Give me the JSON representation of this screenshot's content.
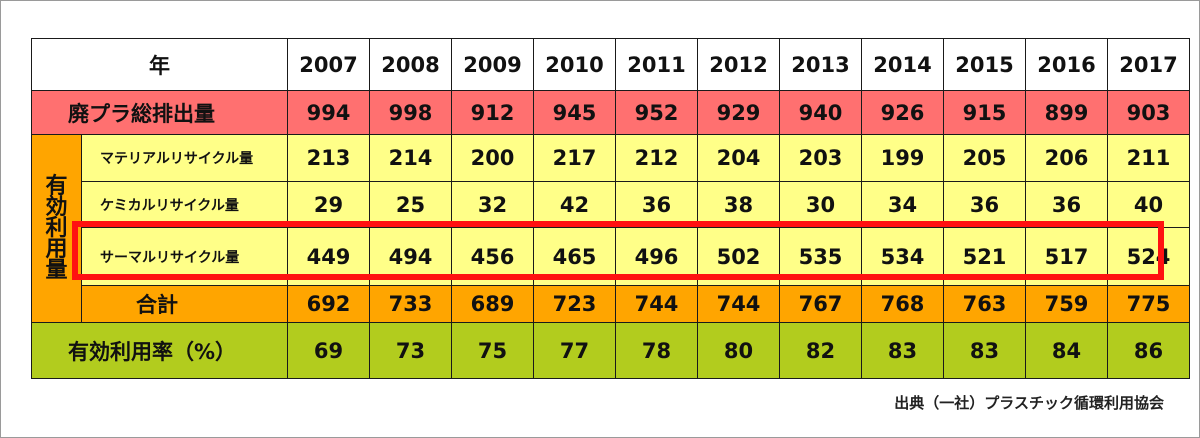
{
  "table": {
    "year_label": "年",
    "years": [
      "2007",
      "2008",
      "2009",
      "2010",
      "2011",
      "2012",
      "2013",
      "2014",
      "2015",
      "2016",
      "2017"
    ],
    "total_label": "廃プラ総排出量",
    "total_values": [
      "994",
      "998",
      "912",
      "945",
      "952",
      "929",
      "940",
      "926",
      "915",
      "899",
      "903"
    ],
    "side_label_chars": [
      "有",
      "効",
      "利",
      "用",
      "量"
    ],
    "material_label": "マテリアルリサイクル量",
    "material_values": [
      "213",
      "214",
      "200",
      "217",
      "212",
      "204",
      "203",
      "199",
      "205",
      "206",
      "211"
    ],
    "chemical_label": "ケミカルリサイクル量",
    "chemical_values": [
      "29",
      "25",
      "32",
      "42",
      "36",
      "38",
      "30",
      "34",
      "36",
      "36",
      "40"
    ],
    "thermal_label": "サーマルリサイクル量",
    "thermal_values": [
      "449",
      "494",
      "456",
      "465",
      "496",
      "502",
      "535",
      "534",
      "521",
      "517",
      "524"
    ],
    "sum_label": "合計",
    "sum_values": [
      "692",
      "733",
      "689",
      "723",
      "744",
      "744",
      "767",
      "768",
      "763",
      "759",
      "775"
    ],
    "rate_label": "有効利用率（%）",
    "rate_values": [
      "69",
      "73",
      "75",
      "77",
      "78",
      "80",
      "82",
      "83",
      "83",
      "84",
      "86"
    ]
  },
  "source": "出典（一社）プラスチック循環利用協会",
  "colors": {
    "total_row": "#ff7070",
    "sub_rows": "#ffff88",
    "side_and_sum": "#ffa500",
    "rate_row": "#b2cc1e",
    "highlight": "#ff1111"
  }
}
